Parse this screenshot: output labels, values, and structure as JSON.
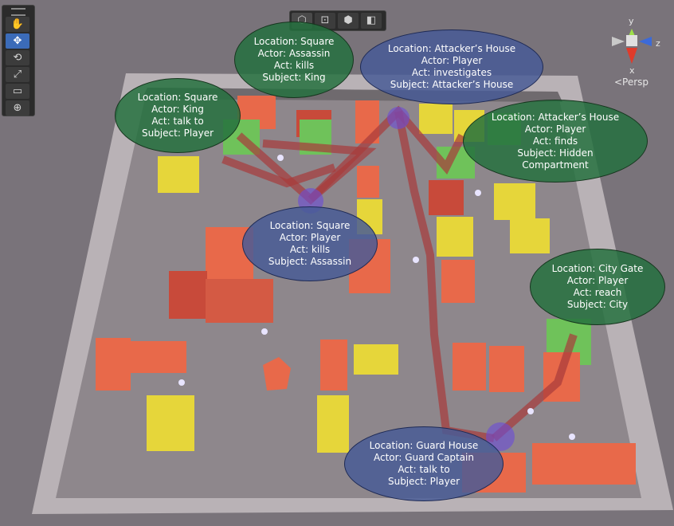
{
  "colors": {
    "floor": "#8f8a8d",
    "wall": "#b7b1b5",
    "building_orange": "#e8694a",
    "building_yellow": "#e6d63a",
    "building_green": "#6fc25a",
    "path": "#a83a3a",
    "bubble_green": "#24703e",
    "bubble_blue": "#485a96"
  },
  "toolbar": {
    "tools": [
      {
        "icon": "hand-icon",
        "glyph": "✋"
      },
      {
        "icon": "move-icon",
        "glyph": "✥"
      },
      {
        "icon": "rotate-icon",
        "glyph": "⟲"
      },
      {
        "icon": "scale-icon",
        "glyph": "⤢"
      },
      {
        "icon": "rect-icon",
        "glyph": "▭"
      },
      {
        "icon": "transform-icon",
        "glyph": "⊕"
      }
    ]
  },
  "view_modes": [
    {
      "icon": "cube-wire-icon",
      "glyph": "⬡"
    },
    {
      "icon": "rect-transform-icon",
      "glyph": "⊡"
    },
    {
      "icon": "cube-outline-icon",
      "glyph": "⬢"
    },
    {
      "icon": "cube-shaded-icon",
      "glyph": "◧"
    }
  ],
  "gizmo": {
    "y_label": "y",
    "x_label": "x",
    "z_label": "z",
    "perspective_label": "<Persp"
  },
  "events": [
    {
      "id": "square-assassin-kills",
      "location": "Location: Square",
      "actor": "Actor: Assassin",
      "act": "Act: kills",
      "subject": "Subject: King",
      "style": "green"
    },
    {
      "id": "attackers-house-investigates",
      "location": "Location: Attacker’s House",
      "actor": "Actor: Player",
      "act": "Act: investigates",
      "subject": "Subject: Attacker’s House",
      "style": "blue"
    },
    {
      "id": "square-king-talk",
      "location": "Location: Square",
      "actor": "Actor: King",
      "act": "Act: talk to",
      "subject": "Subject: Player",
      "style": "green"
    },
    {
      "id": "attackers-house-finds",
      "location": "Location: Attacker’s House",
      "actor": "Actor: Player",
      "act": "Act: finds",
      "subject": "Subject: Hidden",
      "subject2": "Compartment",
      "style": "green"
    },
    {
      "id": "square-player-kills",
      "location": "Location: Square",
      "actor": "Actor: Player",
      "act": "Act: kills",
      "subject": "Subject: Assassin",
      "style": "blue"
    },
    {
      "id": "city-gate-reach",
      "location": "Location: City Gate",
      "actor": "Actor: Player",
      "act": "Act: reach",
      "subject": "Subject: City",
      "style": "green"
    },
    {
      "id": "guard-house-talk",
      "location": "Location: Guard House",
      "actor": "Actor: Guard Captain",
      "act": "Act: talk to",
      "subject": "Subject: Player",
      "style": "blue"
    }
  ]
}
